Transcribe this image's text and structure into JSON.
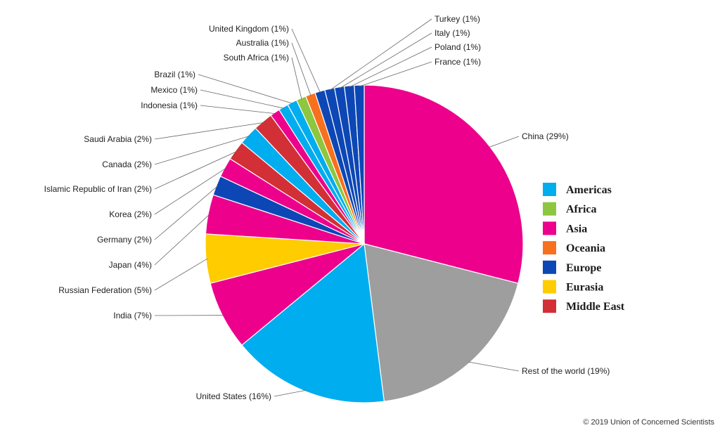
{
  "chart_data": {
    "type": "pie",
    "start_angle_deg": 0,
    "direction": "clockwise",
    "slices": [
      {
        "name": "China",
        "label": "China (29%)",
        "value": 29,
        "region": "Asia"
      },
      {
        "name": "Rest of the world",
        "label": "Rest of the world (19%)",
        "value": 19,
        "region": "Other"
      },
      {
        "name": "United States",
        "label": "United States (16%)",
        "value": 16,
        "region": "Americas"
      },
      {
        "name": "India",
        "label": "India (7%)",
        "value": 7,
        "region": "Asia"
      },
      {
        "name": "Russian Federation",
        "label": "Russian Federation (5%)",
        "value": 5,
        "region": "Eurasia"
      },
      {
        "name": "Japan",
        "label": "Japan (4%)",
        "value": 4,
        "region": "Asia"
      },
      {
        "name": "Germany",
        "label": "Germany (2%)",
        "value": 2,
        "region": "Europe"
      },
      {
        "name": "Korea",
        "label": "Korea (2%)",
        "value": 2,
        "region": "Asia"
      },
      {
        "name": "Islamic Republic of Iran",
        "label": "Islamic Republic of Iran (2%)",
        "value": 2,
        "region": "Middle East"
      },
      {
        "name": "Canada",
        "label": "Canada (2%)",
        "value": 2,
        "region": "Americas"
      },
      {
        "name": "Saudi Arabia",
        "label": "Saudi Arabia (2%)",
        "value": 2,
        "region": "Middle East"
      },
      {
        "name": "Indonesia",
        "label": "Indonesia (1%)",
        "value": 1,
        "region": "Asia"
      },
      {
        "name": "Mexico",
        "label": "Mexico (1%)",
        "value": 1,
        "region": "Americas"
      },
      {
        "name": "Brazil",
        "label": "Brazil (1%)",
        "value": 1,
        "region": "Americas"
      },
      {
        "name": "South Africa",
        "label": "South Africa (1%)",
        "value": 1,
        "region": "Africa"
      },
      {
        "name": "Australia",
        "label": "Australia (1%)",
        "value": 1,
        "region": "Oceania"
      },
      {
        "name": "United Kingdom",
        "label": "United Kingdom (1%)",
        "value": 1,
        "region": "Europe"
      },
      {
        "name": "Turkey",
        "label": "Turkey (1%)",
        "value": 1,
        "region": "Europe"
      },
      {
        "name": "Italy",
        "label": "Italy (1%)",
        "value": 1,
        "region": "Europe"
      },
      {
        "name": "Poland",
        "label": "Poland (1%)",
        "value": 1,
        "region": "Europe"
      },
      {
        "name": "France",
        "label": "France (1%)",
        "value": 1,
        "region": "Europe"
      }
    ],
    "legend": {
      "placement": "right",
      "entries": [
        {
          "name": "Americas",
          "color": "#00ADEF"
        },
        {
          "name": "Africa",
          "color": "#8DC63F"
        },
        {
          "name": "Asia",
          "color": "#EC008C"
        },
        {
          "name": "Oceania",
          "color": "#F7701E"
        },
        {
          "name": "Europe",
          "color": "#0D47B5"
        },
        {
          "name": "Eurasia",
          "color": "#FFCC00"
        },
        {
          "name": "Middle East",
          "color": "#D32F36"
        }
      ]
    },
    "region_colors": {
      "Americas": "#00ADEF",
      "Africa": "#8DC63F",
      "Asia": "#EC008C",
      "Oceania": "#F7701E",
      "Europe": "#0D47B5",
      "Eurasia": "#FFCC00",
      "Middle East": "#D32F36",
      "Other": "#9E9E9E"
    }
  },
  "footer": {
    "copyright": "© 2019 Union of Concerned Scientists"
  }
}
